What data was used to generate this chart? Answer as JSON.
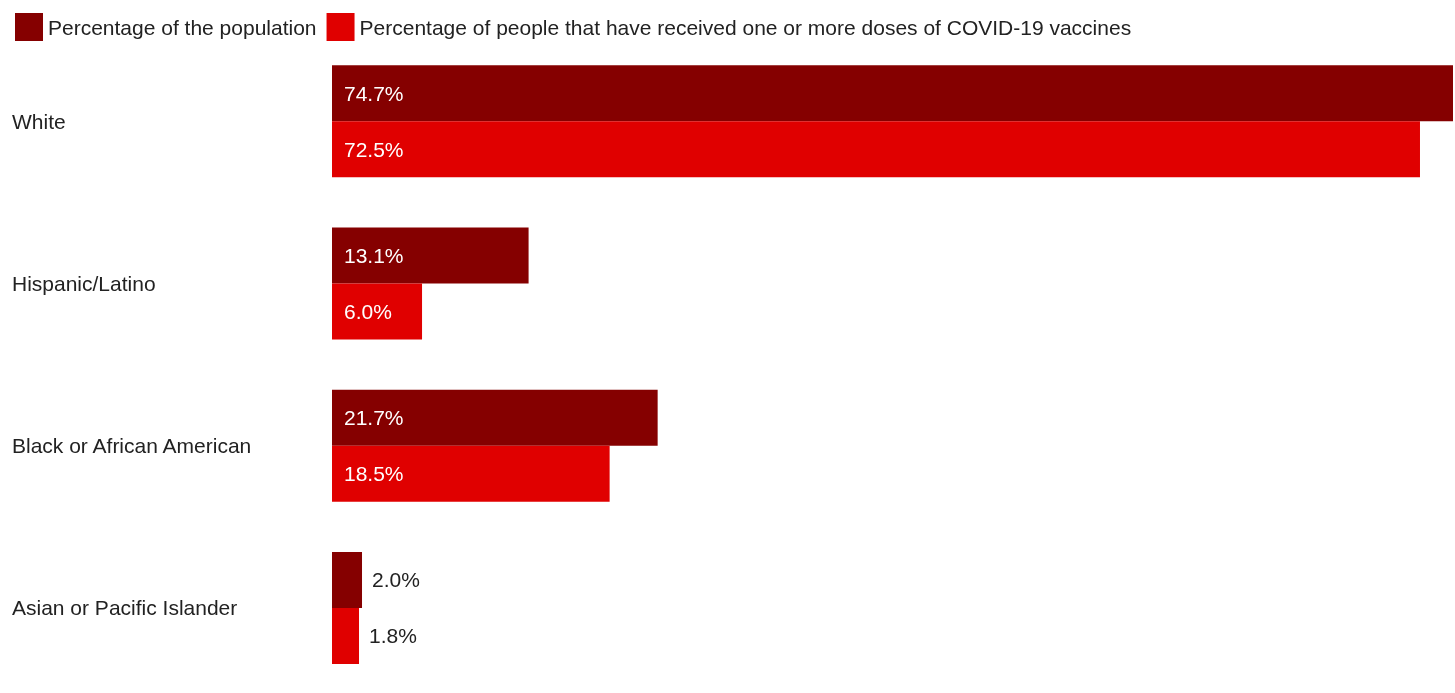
{
  "chart_data": {
    "type": "bar",
    "orientation": "horizontal",
    "legend": "top left",
    "categories": [
      "White",
      "Hispanic/Latino",
      "Black or African American",
      "Asian or Pacific Islander"
    ],
    "series": [
      {
        "name": "Percentage of the population",
        "color": "#850000",
        "values": [
          74.7,
          13.1,
          21.7,
          2.0
        ],
        "value_labels": [
          "74.7%",
          "13.1%",
          "21.7%",
          "2.0%"
        ]
      },
      {
        "name": "Percentage of people that have received one or more doses of COVID-19 vaccines",
        "color": "#e00000",
        "values": [
          72.5,
          6.0,
          18.5,
          1.8
        ],
        "value_labels": [
          "72.5%",
          "6.0%",
          "18.5%",
          "1.8%"
        ]
      }
    ]
  }
}
